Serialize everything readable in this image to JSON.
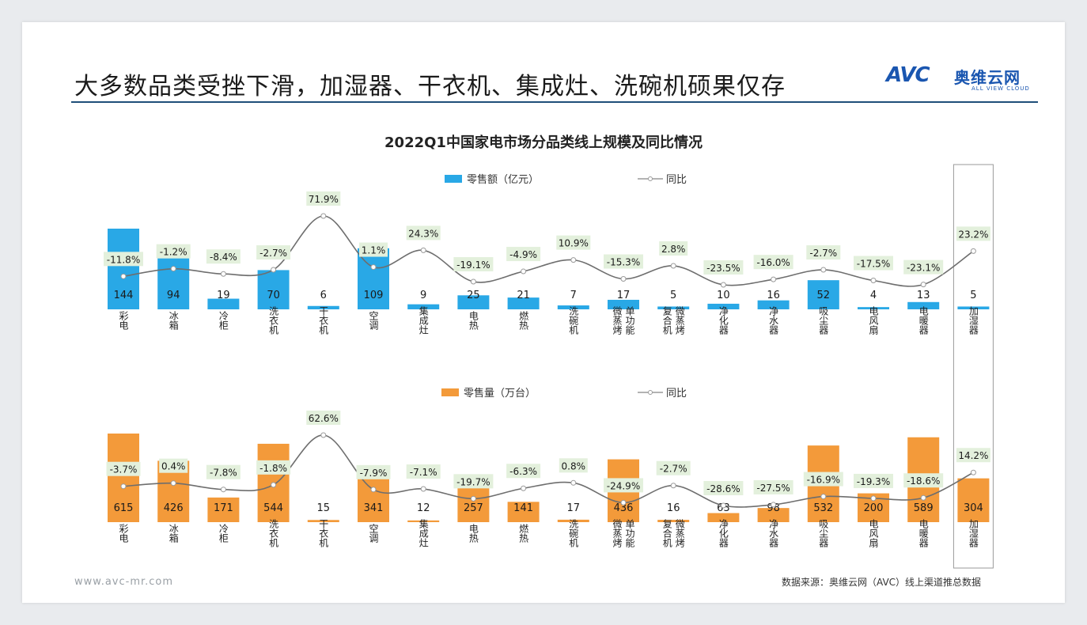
{
  "slide": {
    "headline": "大多数品类受挫下滑，加湿器、干衣机、集成灶、洗碗机硕果仅存",
    "logo": {
      "main": "AVC",
      "cn": "奥维云网",
      "en": "ALL VIEW CLOUD"
    },
    "website": "www.avc-mr.com",
    "source": "数据来源：奥维云网（AVC）线上渠道推总数据"
  },
  "colors": {
    "blue": "#29a8e6",
    "orange": "#f39a3a",
    "line": "#6e6e6e",
    "label_bg": "#e3f0dc"
  },
  "chart_data": [
    {
      "type": "bar",
      "title": "2022Q1中国家电市场分品类线上规模及同比情况",
      "categories": [
        "彩电",
        "冰箱",
        "冷柜",
        "洗衣机",
        "干衣机",
        "空调",
        "集成灶",
        "电热",
        "燃热",
        "洗碗机",
        "微蒸烤单功能",
        "复合机微蒸烤",
        "净化器",
        "净水器",
        "吸尘器",
        "电风扇",
        "电暖器",
        "加湿器"
      ],
      "series": [
        {
          "name": "零售额（亿元）",
          "values": [
            144,
            94,
            19,
            70,
            6,
            109,
            9,
            25,
            21,
            7,
            17,
            5,
            10,
            16,
            52,
            4,
            13,
            5
          ]
        },
        {
          "name": "同比",
          "type": "line",
          "values": [
            -11.8,
            -1.2,
            -8.4,
            -2.7,
            71.9,
            1.1,
            24.3,
            -19.1,
            -4.9,
            10.9,
            -15.3,
            2.8,
            -23.5,
            -16.0,
            -2.7,
            -17.5,
            -23.1,
            23.2
          ],
          "labels": [
            "-11.8%",
            "-1.2%",
            "-8.4%",
            "-2.7%",
            "71.9%",
            "1.1%",
            "24.3%",
            "-19.1%",
            "-4.9%",
            "10.9%",
            "-15.3%",
            "2.8%",
            "-23.5%",
            "-16.0%",
            "-2.7%",
            "-17.5%",
            "-23.1%",
            "23.2%"
          ]
        }
      ],
      "legend": [
        "零售额（亿元）",
        "同比"
      ],
      "highlight_category": "加湿器"
    },
    {
      "type": "bar",
      "title": "",
      "categories": [
        "彩电",
        "冰箱",
        "冷柜",
        "洗衣机",
        "干衣机",
        "空调",
        "集成灶",
        "电热",
        "燃热",
        "洗碗机",
        "微蒸烤单功能",
        "复合机微蒸烤",
        "净化器",
        "净水器",
        "吸尘器",
        "电风扇",
        "电暖器",
        "加湿器"
      ],
      "series": [
        {
          "name": "零售量（万台）",
          "values": [
            615,
            426,
            171,
            544,
            15,
            341,
            12,
            257,
            141,
            17,
            436,
            16,
            63,
            98,
            532,
            200,
            589,
            304
          ]
        },
        {
          "name": "同比",
          "type": "line",
          "values": [
            -3.7,
            0.4,
            -7.8,
            -1.8,
            62.6,
            -7.9,
            -7.1,
            -19.7,
            -6.3,
            0.8,
            -24.9,
            -2.7,
            -28.6,
            -27.5,
            -16.9,
            -19.3,
            -18.6,
            14.2
          ],
          "labels": [
            "-3.7%",
            "0.4%",
            "-7.8%",
            "-1.8%",
            "62.6%",
            "-7.9%",
            "-7.1%",
            "-19.7%",
            "-6.3%",
            "0.8%",
            "-24.9%",
            "-2.7%",
            "-28.6%",
            "-27.5%",
            "-16.9%",
            "-19.3%",
            "-18.6%",
            "14.2%"
          ]
        }
      ],
      "legend": [
        "零售量（万台）",
        "同比"
      ],
      "highlight_category": "加湿器"
    }
  ]
}
